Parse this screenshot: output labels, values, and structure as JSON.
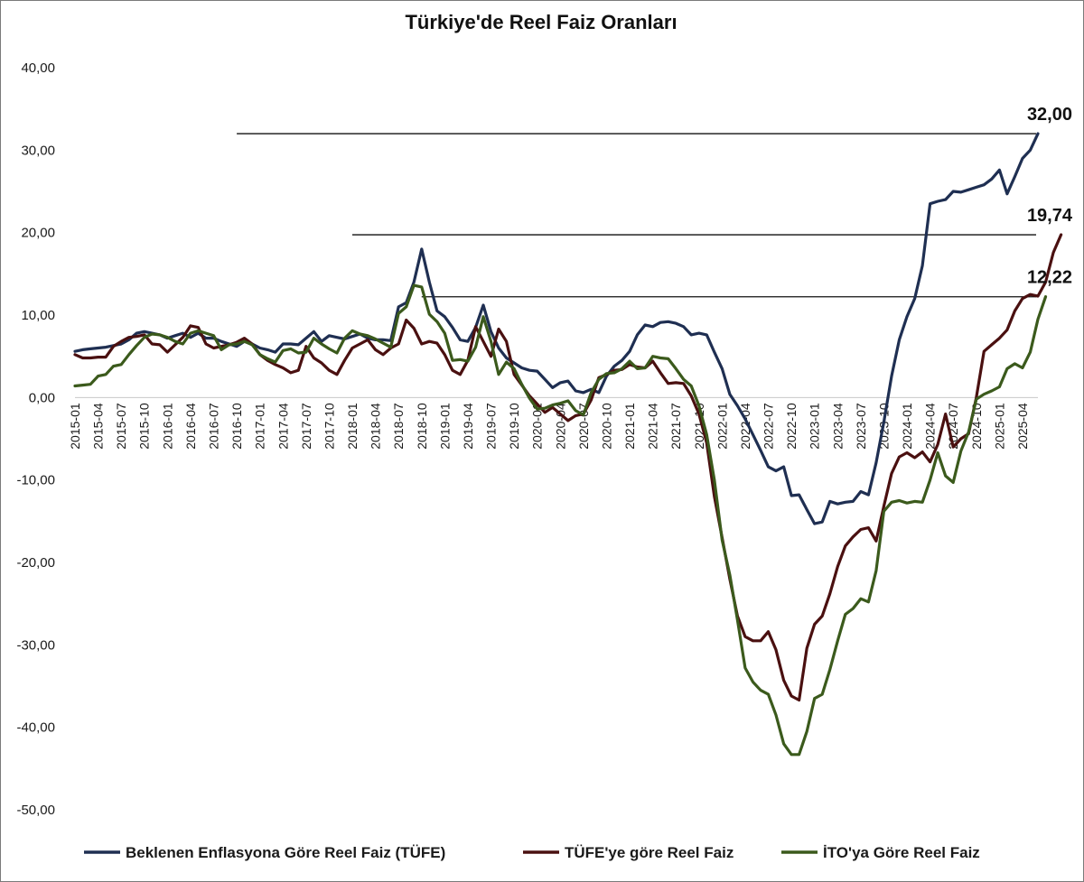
{
  "chart_data": {
    "type": "line",
    "title": "Türkiye'de Reel Faiz Oranları",
    "xlabel": "",
    "ylabel": "",
    "ylim": [
      -50,
      40
    ],
    "y_ticks": [
      "40,00",
      "30,00",
      "20,00",
      "10,00",
      "0,00",
      "-10,00",
      "-20,00",
      "-30,00",
      "-40,00",
      "-50,00"
    ],
    "y_tick_values": [
      40,
      30,
      20,
      10,
      0,
      -10,
      -20,
      -30,
      -40,
      -50
    ],
    "x_tick_labels": [
      "2015-01",
      "2015-04",
      "2015-07",
      "2015-10",
      "2016-01",
      "2016-04",
      "2016-07",
      "2016-10",
      "2017-01",
      "2017-04",
      "2017-07",
      "2017-10",
      "2018-01",
      "2018-04",
      "2018-07",
      "2018-10",
      "2019-01",
      "2019-04",
      "2019-07",
      "2019-10",
      "2020-01",
      "2020-04",
      "2020-07",
      "2020-10",
      "2021-01",
      "2021-04",
      "2021-07",
      "2021-10",
      "2022-01",
      "2022-04",
      "2022-07",
      "2022-10",
      "2023-01",
      "2023-04",
      "2023-07",
      "2023-10",
      "2024-01",
      "2024-04",
      "2024-07",
      "2024-10",
      "2025-01",
      "2025-04"
    ],
    "grid": false,
    "legend_position": "bottom",
    "series": [
      {
        "name": "Beklenen Enflasyona Göre Reel Faiz (TÜFE)",
        "color": "#1f2f52",
        "values": [
          5.6,
          5.8,
          5.9,
          6,
          6.1,
          6.3,
          6.5,
          7,
          7.8,
          8,
          7.8,
          7.6,
          7.2,
          7.5,
          7.8,
          7.3,
          7.8,
          7.2,
          7.2,
          6.8,
          6.5,
          6.2,
          6.8,
          6.5,
          6,
          5.8,
          5.5,
          6.5,
          6.5,
          6.4,
          7.2,
          8,
          6.8,
          7.5,
          7.3,
          7.1,
          7.4,
          7.7,
          7.2,
          7,
          7,
          6.9,
          11,
          11.5,
          14,
          18,
          14,
          10.5,
          9.8,
          8.5,
          7,
          6.8,
          8.5,
          11.2,
          8,
          6,
          4.8,
          4.2,
          3.6,
          3.3,
          3.2,
          2.2,
          1.2,
          1.8,
          2,
          0.8,
          0.6,
          1,
          0.6,
          2.6,
          3.8,
          4.5,
          5.6,
          7.6,
          8.8,
          8.6,
          9.1,
          9.2,
          9,
          8.6,
          7.6,
          7.8,
          7.6,
          5.5,
          3.5,
          0.4,
          -1,
          -2.6,
          -4.5,
          -6.4,
          -8.4,
          -8.9,
          -8.4,
          -11.9,
          -11.8,
          -13.6,
          -15.3,
          -15.1,
          -12.6,
          -12.9,
          -12.7,
          -12.6,
          -11.4,
          -11.8,
          -7.9,
          -3,
          2.6,
          7,
          9.8,
          12,
          16,
          23.5,
          23.8,
          24,
          25,
          24.9,
          25.2,
          25.5,
          25.8,
          26.5,
          27.6,
          24.7,
          26.8,
          29,
          30,
          32
        ]
      },
      {
        "name": "TÜFE'ye göre Reel Faiz",
        "color": "#4a1010",
        "values": [
          5.2,
          4.8,
          4.8,
          4.9,
          4.9,
          6.2,
          6.8,
          7.3,
          7.4,
          7.6,
          6.5,
          6.4,
          5.5,
          6.4,
          7.3,
          8.7,
          8.5,
          6.5,
          6,
          6.2,
          6.4,
          6.7,
          7.2,
          6.5,
          5.2,
          4.5,
          4,
          3.6,
          3,
          3.3,
          6.2,
          4.8,
          4.2,
          3.3,
          2.8,
          4.5,
          6,
          6.5,
          7,
          5.8,
          5.2,
          6,
          6.5,
          9.4,
          8.4,
          6.5,
          6.8,
          6.6,
          5.2,
          3.3,
          2.8,
          4.5,
          8.6,
          6.8,
          5,
          8.3,
          6.8,
          2.8,
          1.5,
          0.2,
          -0.8,
          -1.8,
          -1.2,
          -2,
          -2.8,
          -2.2,
          -2,
          -0.3,
          2.4,
          2.8,
          3.3,
          3.4,
          4,
          3.7,
          3.6,
          4.4,
          3,
          1.7,
          1.8,
          1.7,
          0.2,
          -2,
          -5.5,
          -12,
          -17,
          -22,
          -26.5,
          -29,
          -29.5,
          -29.5,
          -28.4,
          -30.6,
          -34.3,
          -36.2,
          -36.7,
          -30.4,
          -27.5,
          -26.5,
          -23.8,
          -20.5,
          -18,
          -16.9,
          -16,
          -15.8,
          -17.4,
          -13.2,
          -9.2,
          -7.2,
          -6.7,
          -7.3,
          -6.6,
          -7.8,
          -5.7,
          -2,
          -6,
          -5,
          -4.4,
          0,
          5.6,
          6.4,
          7.2,
          8.2,
          10.5,
          12,
          12.5,
          12.3,
          14,
          17.6,
          19.74
        ]
      },
      {
        "name": "İTO'ya Göre Reel Faiz",
        "color": "#3b5a1c",
        "values": [
          1.4,
          1.5,
          1.6,
          2.6,
          2.8,
          3.8,
          4,
          5.2,
          6.3,
          7.3,
          7.7,
          7.6,
          7.3,
          6.8,
          6.5,
          7.8,
          8.1,
          7.8,
          7.5,
          5.8,
          6.4,
          6.5,
          6.8,
          6.4,
          5.2,
          4.7,
          4.3,
          5.7,
          5.9,
          5.4,
          5.5,
          7.2,
          6.5,
          5.9,
          5.4,
          7.2,
          8.1,
          7.7,
          7.5,
          7.1,
          6.6,
          6.1,
          10.2,
          11,
          13.6,
          13.4,
          10.1,
          9.2,
          7.8,
          4.5,
          4.6,
          4.4,
          6.1,
          9.8,
          6.8,
          2.8,
          4.3,
          3.5,
          1.6,
          -0.1,
          -1.4,
          -1.3,
          -0.9,
          -0.7,
          -0.4,
          -1.6,
          -2.1,
          0.6,
          2.2,
          2.9,
          3,
          3.5,
          4.4,
          3.5,
          3.6,
          5,
          4.8,
          4.7,
          3.5,
          2.2,
          1.4,
          -1,
          -4.5,
          -10,
          -17.3,
          -21.5,
          -27,
          -32.8,
          -34.5,
          -35.5,
          -36,
          -38.5,
          -42,
          -43.3,
          -43.3,
          -40.5,
          -36.5,
          -36,
          -33,
          -29.5,
          -26.3,
          -25.6,
          -24.4,
          -24.8,
          -21,
          -13.8,
          -12.7,
          -12.5,
          -12.8,
          -12.6,
          -12.7,
          -10,
          -6.7,
          -9.5,
          -10.3,
          -6.5,
          -4.2,
          -0.2,
          0.4,
          0.8,
          1.3,
          3.5,
          4.1,
          3.6,
          5.5,
          9.5,
          12.22
        ]
      }
    ],
    "reference_lines": [
      {
        "value": 32,
        "label": "32,00",
        "start": "2016-10"
      },
      {
        "value": 19.74,
        "label": "19,74",
        "start": "2018-01"
      },
      {
        "value": 12.22,
        "label": "12,22",
        "start": "2018-10"
      }
    ]
  }
}
